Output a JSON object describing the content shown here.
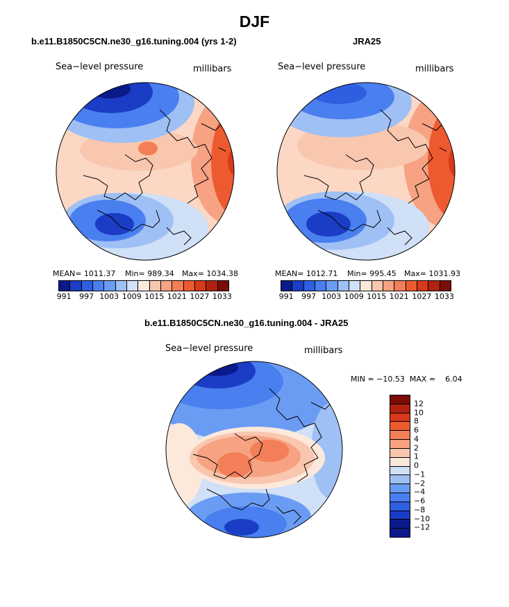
{
  "figure": {
    "title": "DJF",
    "colors": {
      "abs_palette": [
        "#0b1a8a",
        "#1b3cc4",
        "#2f5fe0",
        "#4a7ff0",
        "#6b9cf3",
        "#9fc0f5",
        "#cfe0f7",
        "#fde9dc",
        "#f9c6ae",
        "#f6a283",
        "#f27f57",
        "#ee5a30",
        "#d8391a",
        "#b0220f",
        "#7a0d06"
      ],
      "diff_palette": [
        "#0b1a8a",
        "#1b3cc4",
        "#2f5fe0",
        "#4a7ff0",
        "#6b9cf3",
        "#9fc0f5",
        "#cfe0f7",
        "#fde9dc",
        "#f9c6ae",
        "#f6a283",
        "#f27f57",
        "#ee5a30",
        "#d8391a",
        "#b0220f",
        "#7a0d06"
      ]
    }
  },
  "panels": [
    {
      "id": "model",
      "title": "b.e11.B1850C5CN.ne30_g16.tuning.004 (yrs 1-2)",
      "left_label": "Sea−level pressure",
      "right_label": "millibars",
      "stats": {
        "mean": "MEAN= 1011.37",
        "min": "Min= 989.34",
        "max": "Max= 1034.38"
      },
      "colorbar_labels": [
        "991",
        "997",
        "1003",
        "1009",
        "1015",
        "1021",
        "1027",
        "1033"
      ]
    },
    {
      "id": "obs",
      "title": "JRA25",
      "left_label": "Sea−level pressure",
      "right_label": "millibars",
      "stats": {
        "mean": "MEAN= 1012.71",
        "min": "Min= 995.45",
        "max": "Max= 1031.93"
      },
      "colorbar_labels": [
        "991",
        "997",
        "1003",
        "1009",
        "1015",
        "1021",
        "1027",
        "1033"
      ]
    },
    {
      "id": "diff",
      "title": "b.e11.B1850C5CN.ne30_g16.tuning.004 - JRA25",
      "left_label": "Sea−level pressure",
      "right_label": "millibars",
      "stats": {
        "minmax": "MIN = −10.53  MAX =    6.04"
      },
      "colorbar_labels": [
        "12",
        "10",
        "8",
        "6",
        "4",
        "2",
        "1",
        "0",
        "−1",
        "−2",
        "−4",
        "−6",
        "−8",
        "−10",
        "−12"
      ]
    }
  ]
}
